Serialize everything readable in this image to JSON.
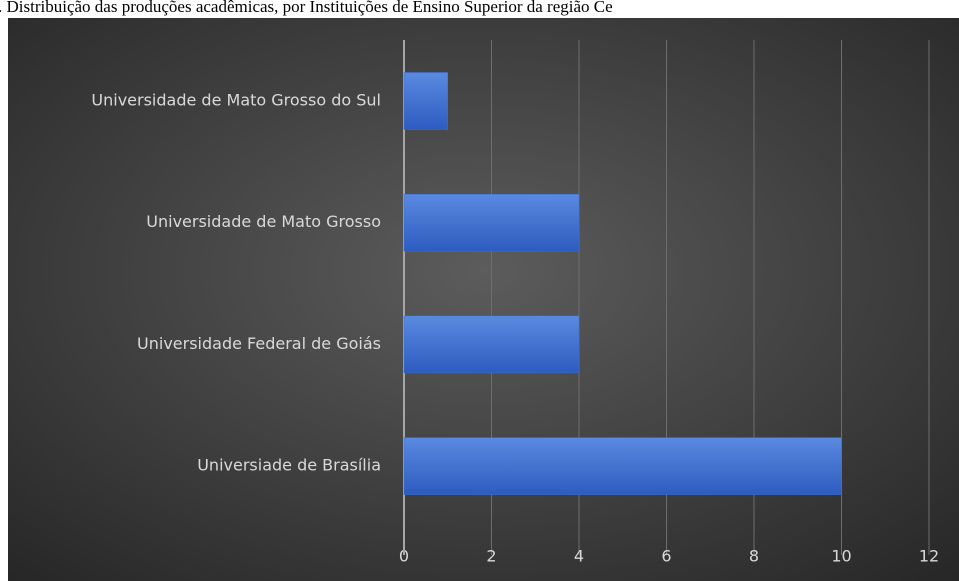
{
  "chart_data": {
    "type": "barh",
    "title": ". Distribuição das produções acadêmicas, por Instituições de Ensino Superior da região Ce",
    "categories": [
      "Universidade de Mato Grosso do Sul",
      "Universidade de Mato Grosso",
      "Universidade Federal de Goiás",
      "Universiade de Brasília"
    ],
    "values": [
      1,
      4,
      4,
      10
    ],
    "color": "#3f6fcf",
    "xlim": [
      0,
      12
    ],
    "xticks": [
      0,
      2,
      4,
      6,
      8,
      10,
      12
    ],
    "grid": true
  }
}
